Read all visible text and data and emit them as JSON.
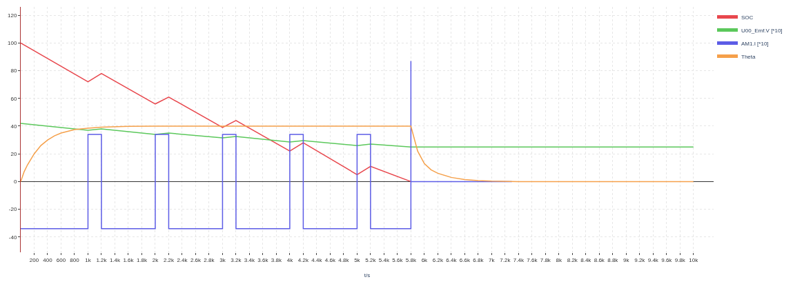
{
  "chart_data": {
    "type": "line",
    "xlabel": "t/s",
    "xlim": [
      0,
      10300
    ],
    "ylim": [
      -51,
      126
    ],
    "xticks": [
      {
        "value": 200,
        "label": "200"
      },
      {
        "value": 400,
        "label": "400"
      },
      {
        "value": 600,
        "label": "600"
      },
      {
        "value": 800,
        "label": "800"
      },
      {
        "value": 1000,
        "label": "1k"
      },
      {
        "value": 1200,
        "label": "1.2k"
      },
      {
        "value": 1400,
        "label": "1.4k"
      },
      {
        "value": 1600,
        "label": "1.6k"
      },
      {
        "value": 1800,
        "label": "1.8k"
      },
      {
        "value": 2000,
        "label": "2k"
      },
      {
        "value": 2200,
        "label": "2.2k"
      },
      {
        "value": 2400,
        "label": "2.4k"
      },
      {
        "value": 2600,
        "label": "2.6k"
      },
      {
        "value": 2800,
        "label": "2.8k"
      },
      {
        "value": 3000,
        "label": "3k"
      },
      {
        "value": 3200,
        "label": "3.2k"
      },
      {
        "value": 3400,
        "label": "3.4k"
      },
      {
        "value": 3600,
        "label": "3.6k"
      },
      {
        "value": 3800,
        "label": "3.8k"
      },
      {
        "value": 4000,
        "label": "4k"
      },
      {
        "value": 4200,
        "label": "4.2k"
      },
      {
        "value": 4400,
        "label": "4.4k"
      },
      {
        "value": 4600,
        "label": "4.6k"
      },
      {
        "value": 4800,
        "label": "4.8k"
      },
      {
        "value": 5000,
        "label": "5k"
      },
      {
        "value": 5200,
        "label": "5.2k"
      },
      {
        "value": 5400,
        "label": "5.4k"
      },
      {
        "value": 5600,
        "label": "5.6k"
      },
      {
        "value": 5800,
        "label": "5.8k"
      },
      {
        "value": 6000,
        "label": "6k"
      },
      {
        "value": 6200,
        "label": "6.2k"
      },
      {
        "value": 6400,
        "label": "6.4k"
      },
      {
        "value": 6600,
        "label": "6.6k"
      },
      {
        "value": 6800,
        "label": "6.8k"
      },
      {
        "value": 7000,
        "label": "7k"
      },
      {
        "value": 7200,
        "label": "7.2k"
      },
      {
        "value": 7400,
        "label": "7.4k"
      },
      {
        "value": 7600,
        "label": "7.6k"
      },
      {
        "value": 7800,
        "label": "7.8k"
      },
      {
        "value": 8000,
        "label": "8k"
      },
      {
        "value": 8200,
        "label": "8.2k"
      },
      {
        "value": 8400,
        "label": "8.4k"
      },
      {
        "value": 8600,
        "label": "8.6k"
      },
      {
        "value": 8800,
        "label": "8.8k"
      },
      {
        "value": 9000,
        "label": "9k"
      },
      {
        "value": 9200,
        "label": "9.2k"
      },
      {
        "value": 9400,
        "label": "9.4k"
      },
      {
        "value": 9600,
        "label": "9.6k"
      },
      {
        "value": 9800,
        "label": "9.8k"
      },
      {
        "value": 10000,
        "label": "10k"
      }
    ],
    "yticks": [
      -40,
      -20,
      0,
      20,
      40,
      60,
      80,
      100,
      120
    ],
    "grid": true,
    "legend": "top right",
    "marker": "none",
    "line_style": "solid",
    "series": [
      {
        "name": "SOC",
        "color": "#e8474d",
        "x": [
          0,
          1000,
          1200,
          2000,
          2200,
          3000,
          3200,
          4000,
          4200,
          5000,
          5200,
          5800
        ],
        "values": [
          100,
          72,
          78,
          56,
          61,
          39,
          44,
          22,
          28,
          5,
          11,
          0
        ]
      },
      {
        "name": "U00_Emf.V [*10]",
        "color": "#5bc85b",
        "x": [
          0,
          1000,
          1200,
          2000,
          2200,
          3000,
          3200,
          4000,
          4200,
          5000,
          5200,
          5800,
          10000
        ],
        "values": [
          42,
          37,
          38,
          34,
          35,
          31.5,
          32.5,
          28.5,
          29.5,
          26,
          27,
          25,
          25
        ]
      },
      {
        "name": "AM1.I [*10]",
        "color": "#5c5ce6",
        "x": [
          0,
          1000,
          1000,
          1200,
          1200,
          2000,
          2000,
          2200,
          2200,
          3000,
          3000,
          3200,
          3200,
          4000,
          4000,
          4200,
          4200,
          5000,
          5000,
          5200,
          5200,
          5800,
          5800,
          5800,
          7300
        ],
        "values": [
          -34,
          -34,
          34,
          34,
          -34,
          -34,
          34,
          34,
          -34,
          -34,
          34,
          34,
          -34,
          -34,
          34,
          34,
          -34,
          -34,
          34,
          34,
          -34,
          -34,
          87,
          0,
          0
        ]
      },
      {
        "name": "Theta",
        "color": "#f5a04a",
        "x": [
          0,
          50,
          100,
          200,
          300,
          400,
          500,
          600,
          800,
          1000,
          1200,
          1600,
          2000,
          5800,
          5900,
          6000,
          6100,
          6200,
          6400,
          6600,
          6800,
          7000,
          7400,
          10000
        ],
        "values": [
          0,
          7,
          12,
          20,
          26,
          30,
          33,
          35,
          37.5,
          38.5,
          39.3,
          39.8,
          40,
          40,
          22,
          13,
          8.5,
          6,
          3,
          1.5,
          0.7,
          0.3,
          0,
          0
        ]
      }
    ]
  }
}
